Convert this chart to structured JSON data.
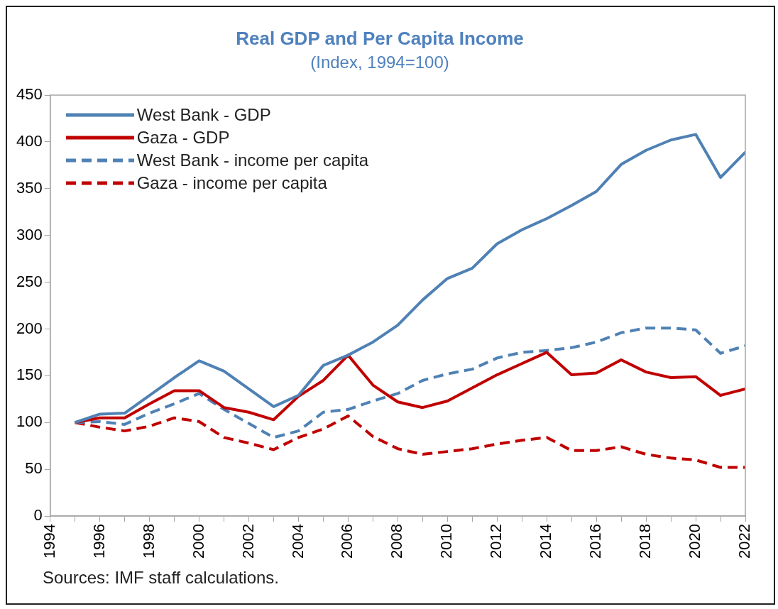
{
  "chart_data": {
    "type": "line",
    "title": "Real GDP and Per Capita Income",
    "subtitle": "(Index, 1994=100)",
    "x": [
      1995,
      1996,
      1997,
      1998,
      1999,
      2000,
      2001,
      2002,
      2003,
      2004,
      2005,
      2006,
      2007,
      2008,
      2009,
      2010,
      2011,
      2012,
      2013,
      2014,
      2015,
      2016,
      2017,
      2018,
      2019,
      2020,
      2021,
      2022
    ],
    "series": [
      {
        "name": "West Bank - GDP",
        "color": "#4f81b4",
        "line_style": "solid",
        "values": [
          100,
          109,
          110,
          129,
          148,
          166,
          155,
          136,
          117,
          129,
          161,
          172,
          186,
          204,
          231,
          254,
          265,
          291,
          306,
          318,
          332,
          347,
          376,
          391,
          402,
          408,
          362,
          389
        ]
      },
      {
        "name": "Gaza - GDP",
        "color": "#c00000",
        "line_style": "solid",
        "values": [
          100,
          105,
          105,
          120,
          134,
          134,
          116,
          111,
          103,
          128,
          145,
          172,
          140,
          122,
          116,
          123,
          137,
          151,
          163,
          175,
          151,
          153,
          167,
          154,
          148,
          149,
          129,
          136
        ]
      },
      {
        "name": "West Bank - income per capita",
        "color": "#4f81b4",
        "line_style": "dashed",
        "values": [
          100,
          101,
          98,
          110,
          120,
          131,
          114,
          99,
          84,
          91,
          111,
          114,
          123,
          131,
          145,
          152,
          157,
          169,
          175,
          177,
          180,
          186,
          196,
          201,
          201,
          199,
          174,
          182
        ]
      },
      {
        "name": "Gaza - income per capita",
        "color": "#c00000",
        "line_style": "dashed",
        "values": [
          100,
          95,
          91,
          96,
          105,
          101,
          84,
          78,
          71,
          84,
          93,
          107,
          85,
          72,
          66,
          69,
          72,
          77,
          81,
          84,
          70,
          70,
          74,
          66,
          62,
          60,
          52,
          52
        ]
      }
    ],
    "xlim": [
      1994,
      2022
    ],
    "xticks": [
      1994,
      {
        "value": 1995,
        "label": null
      },
      1996,
      {
        "value": 1997,
        "label": null
      },
      1998,
      {
        "value": 1999,
        "label": null
      },
      2000,
      {
        "value": 2001,
        "label": null
      },
      2002,
      {
        "value": 2003,
        "label": null
      },
      2004,
      {
        "value": 2005,
        "label": null
      },
      2006,
      {
        "value": 2007,
        "label": null
      },
      2008,
      {
        "value": 2009,
        "label": null
      },
      2010,
      {
        "value": 2011,
        "label": null
      },
      2012,
      {
        "value": 2013,
        "label": null
      },
      2014,
      {
        "value": 2015,
        "label": null
      },
      2016,
      {
        "value": 2017,
        "label": null
      },
      2018,
      {
        "value": 2019,
        "label": null
      },
      2020,
      {
        "value": 2021,
        "label": null
      },
      2022
    ],
    "ylim": [
      0,
      450
    ],
    "yticks": [
      0,
      50,
      100,
      150,
      200,
      250,
      300,
      350,
      400,
      450
    ],
    "grid": false,
    "legend": "top left",
    "marker": "none",
    "annotations": [
      "Sources: IMF staff calculations."
    ]
  }
}
